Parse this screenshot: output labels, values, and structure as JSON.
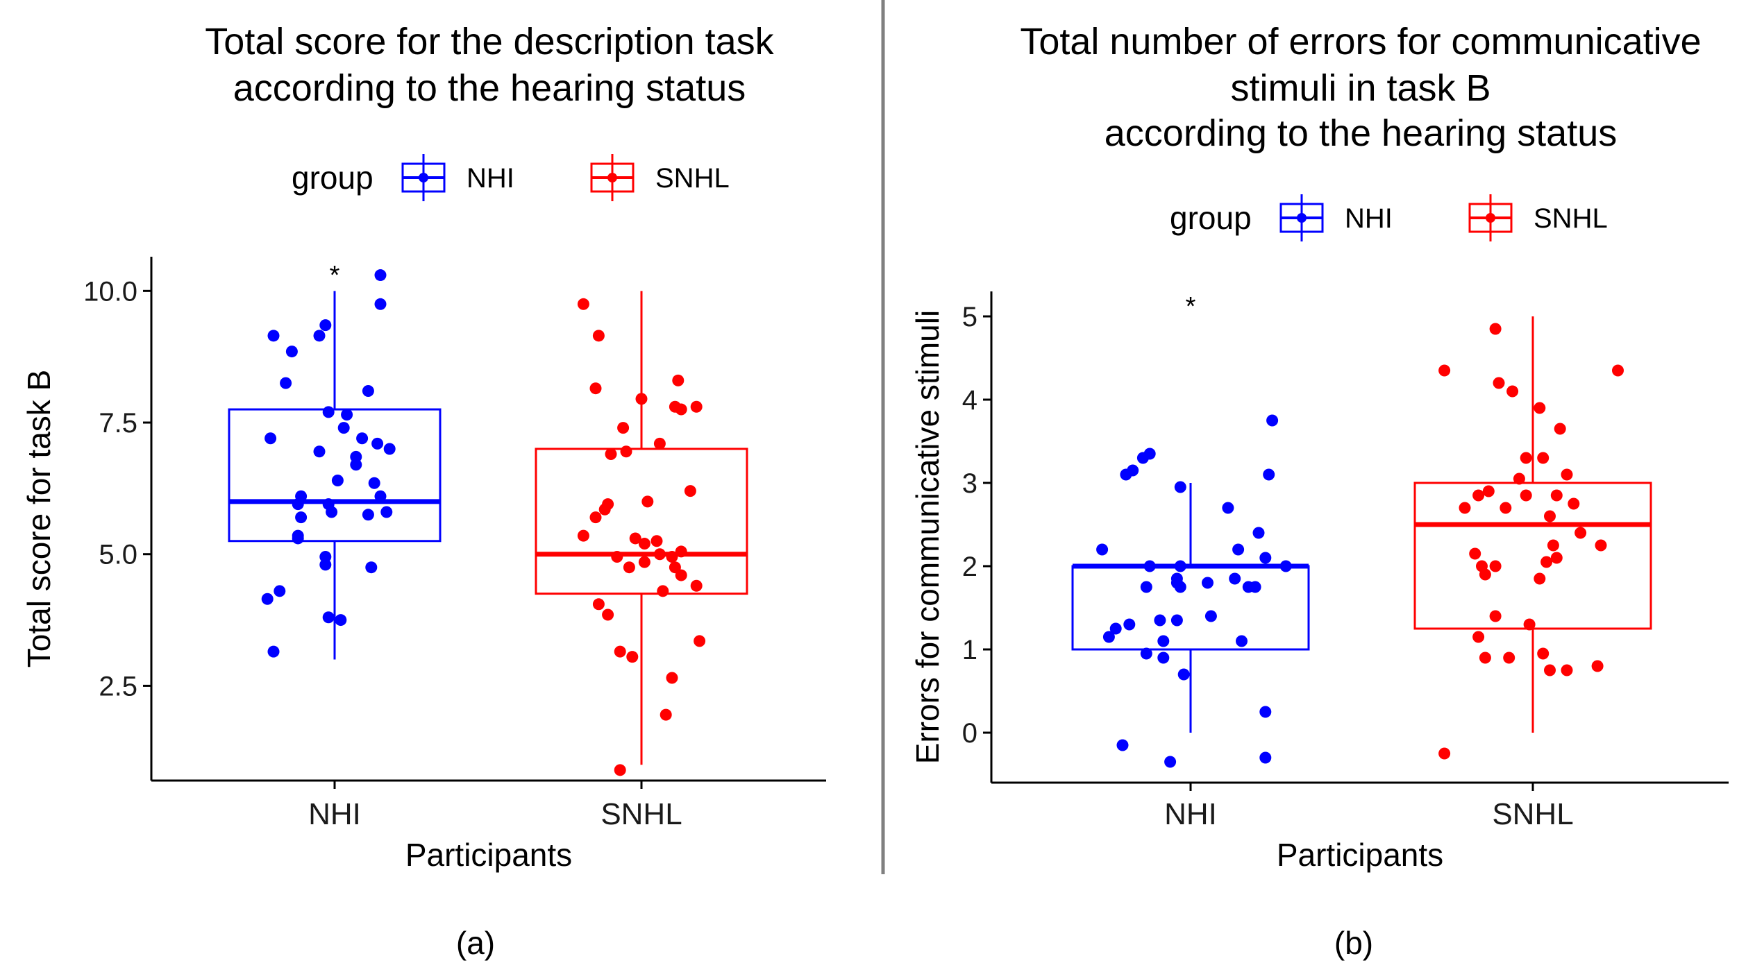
{
  "chart_data": [
    {
      "type": "box",
      "panel_label": "(a)",
      "title": [
        "Total score for the description task",
        "according to the hearing status"
      ],
      "legend": {
        "title": "group",
        "position": "top",
        "entries": [
          "NHI",
          "SNHL"
        ]
      },
      "xlabel": "Participants",
      "ylabel": "Total score for task B",
      "ylim": [
        0.7,
        10.65
      ],
      "yticks": [
        2.5,
        5.0,
        7.5,
        10.0
      ],
      "ytick_labels": [
        "2.5",
        "5.0",
        "7.5",
        "10.0"
      ],
      "categories": [
        "NHI",
        "SNHL"
      ],
      "significance": {
        "category": "NHI",
        "y": 10.35,
        "label": "*"
      },
      "series": [
        {
          "name": "NHI",
          "color": "#0000ff",
          "box": {
            "whisker_low": 3.0,
            "q1": 5.25,
            "median": 6.0,
            "q3": 7.75,
            "whisker_high": 10.0
          },
          "points": [
            {
              "dx": -0.2,
              "y": 9.15
            },
            {
              "dx": -0.14,
              "y": 8.85
            },
            {
              "dx": -0.05,
              "y": 9.15
            },
            {
              "dx": -0.03,
              "y": 9.35
            },
            {
              "dx": 0.15,
              "y": 10.3
            },
            {
              "dx": 0.15,
              "y": 9.75
            },
            {
              "dx": -0.16,
              "y": 8.25
            },
            {
              "dx": 0.11,
              "y": 8.1
            },
            {
              "dx": -0.02,
              "y": 7.7
            },
            {
              "dx": 0.04,
              "y": 7.65
            },
            {
              "dx": 0.03,
              "y": 7.4
            },
            {
              "dx": 0.09,
              "y": 7.2
            },
            {
              "dx": -0.21,
              "y": 7.2
            },
            {
              "dx": -0.05,
              "y": 6.95
            },
            {
              "dx": 0.14,
              "y": 7.1
            },
            {
              "dx": 0.18,
              "y": 7.0
            },
            {
              "dx": 0.07,
              "y": 6.85
            },
            {
              "dx": 0.07,
              "y": 6.7
            },
            {
              "dx": 0.01,
              "y": 6.4
            },
            {
              "dx": 0.13,
              "y": 6.35
            },
            {
              "dx": -0.11,
              "y": 6.1
            },
            {
              "dx": -0.02,
              "y": 5.95
            },
            {
              "dx": 0.15,
              "y": 6.1
            },
            {
              "dx": -0.12,
              "y": 5.95
            },
            {
              "dx": -0.01,
              "y": 5.8
            },
            {
              "dx": 0.11,
              "y": 5.75
            },
            {
              "dx": -0.11,
              "y": 5.7
            },
            {
              "dx": 0.17,
              "y": 5.8
            },
            {
              "dx": -0.12,
              "y": 5.35
            },
            {
              "dx": -0.12,
              "y": 5.3
            },
            {
              "dx": -0.03,
              "y": 4.95
            },
            {
              "dx": -0.03,
              "y": 4.8
            },
            {
              "dx": 0.12,
              "y": 4.75
            },
            {
              "dx": -0.18,
              "y": 4.3
            },
            {
              "dx": -0.22,
              "y": 4.15
            },
            {
              "dx": -0.02,
              "y": 3.8
            },
            {
              "dx": 0.02,
              "y": 3.75
            },
            {
              "dx": -0.2,
              "y": 3.15
            }
          ]
        },
        {
          "name": "SNHL",
          "color": "#ff0000",
          "box": {
            "whisker_low": 1.0,
            "q1": 4.25,
            "median": 5.0,
            "q3": 7.0,
            "whisker_high": 10.0
          },
          "points": [
            {
              "dx": -0.19,
              "y": 9.75
            },
            {
              "dx": -0.14,
              "y": 9.15
            },
            {
              "dx": 0.12,
              "y": 8.3
            },
            {
              "dx": -0.15,
              "y": 8.15
            },
            {
              "dx": 0.0,
              "y": 7.95
            },
            {
              "dx": 0.11,
              "y": 7.8
            },
            {
              "dx": 0.18,
              "y": 7.8
            },
            {
              "dx": 0.13,
              "y": 7.75
            },
            {
              "dx": -0.06,
              "y": 7.4
            },
            {
              "dx": 0.06,
              "y": 7.1
            },
            {
              "dx": -0.1,
              "y": 6.9
            },
            {
              "dx": -0.05,
              "y": 6.95
            },
            {
              "dx": 0.16,
              "y": 6.2
            },
            {
              "dx": 0.02,
              "y": 6.0
            },
            {
              "dx": -0.11,
              "y": 5.95
            },
            {
              "dx": -0.12,
              "y": 5.85
            },
            {
              "dx": -0.15,
              "y": 5.7
            },
            {
              "dx": -0.19,
              "y": 5.35
            },
            {
              "dx": -0.02,
              "y": 5.3
            },
            {
              "dx": 0.05,
              "y": 5.25
            },
            {
              "dx": 0.01,
              "y": 5.2
            },
            {
              "dx": 0.13,
              "y": 5.05
            },
            {
              "dx": 0.06,
              "y": 5.0
            },
            {
              "dx": -0.08,
              "y": 4.95
            },
            {
              "dx": 0.1,
              "y": 4.95
            },
            {
              "dx": 0.01,
              "y": 4.85
            },
            {
              "dx": 0.11,
              "y": 4.75
            },
            {
              "dx": -0.04,
              "y": 4.75
            },
            {
              "dx": 0.13,
              "y": 4.6
            },
            {
              "dx": 0.18,
              "y": 4.4
            },
            {
              "dx": 0.07,
              "y": 4.3
            },
            {
              "dx": -0.14,
              "y": 4.05
            },
            {
              "dx": -0.11,
              "y": 3.85
            },
            {
              "dx": 0.19,
              "y": 3.35
            },
            {
              "dx": -0.07,
              "y": 3.15
            },
            {
              "dx": -0.03,
              "y": 3.05
            },
            {
              "dx": 0.1,
              "y": 2.65
            },
            {
              "dx": 0.08,
              "y": 1.95
            },
            {
              "dx": -0.07,
              "y": 0.9
            }
          ]
        }
      ]
    },
    {
      "type": "box",
      "panel_label": "(b)",
      "title": [
        "Total number of errors for communicative",
        "stimuli in task B",
        "according to the hearing status"
      ],
      "legend": {
        "title": "group",
        "position": "top",
        "entries": [
          "NHI",
          "SNHL"
        ]
      },
      "xlabel": "Participants",
      "ylabel": "Errors for communicative stimuli",
      "ylim": [
        -0.6,
        5.3
      ],
      "yticks": [
        0,
        1,
        2,
        3,
        4,
        5
      ],
      "ytick_labels": [
        "0",
        "1",
        "2",
        "3",
        "4",
        "5"
      ],
      "categories": [
        "NHI",
        "SNHL"
      ],
      "significance": {
        "category": "NHI",
        "y": 5.15,
        "label": "*"
      },
      "series": [
        {
          "name": "NHI",
          "color": "#0000ff",
          "box": {
            "whisker_low": 0.0,
            "q1": 1.0,
            "median": 2.0,
            "q3": 2.0,
            "whisker_high": 3.0
          },
          "points": [
            {
              "dx": 0.24,
              "y": 3.75
            },
            {
              "dx": -0.12,
              "y": 3.35
            },
            {
              "dx": -0.14,
              "y": 3.3
            },
            {
              "dx": -0.17,
              "y": 3.15
            },
            {
              "dx": -0.19,
              "y": 3.1
            },
            {
              "dx": 0.23,
              "y": 3.1
            },
            {
              "dx": -0.03,
              "y": 2.95
            },
            {
              "dx": 0.11,
              "y": 2.7
            },
            {
              "dx": 0.2,
              "y": 2.4
            },
            {
              "dx": -0.26,
              "y": 2.2
            },
            {
              "dx": 0.14,
              "y": 2.2
            },
            {
              "dx": 0.22,
              "y": 2.1
            },
            {
              "dx": -0.03,
              "y": 2.0
            },
            {
              "dx": -0.12,
              "y": 2.0
            },
            {
              "dx": 0.28,
              "y": 2.0
            },
            {
              "dx": -0.04,
              "y": 1.85
            },
            {
              "dx": 0.13,
              "y": 1.85
            },
            {
              "dx": -0.04,
              "y": 1.8
            },
            {
              "dx": 0.05,
              "y": 1.8
            },
            {
              "dx": 0.17,
              "y": 1.75
            },
            {
              "dx": -0.03,
              "y": 1.75
            },
            {
              "dx": -0.13,
              "y": 1.75
            },
            {
              "dx": 0.19,
              "y": 1.75
            },
            {
              "dx": 0.06,
              "y": 1.4
            },
            {
              "dx": -0.04,
              "y": 1.35
            },
            {
              "dx": -0.09,
              "y": 1.35
            },
            {
              "dx": -0.18,
              "y": 1.3
            },
            {
              "dx": -0.22,
              "y": 1.25
            },
            {
              "dx": -0.24,
              "y": 1.15
            },
            {
              "dx": 0.15,
              "y": 1.1
            },
            {
              "dx": -0.08,
              "y": 1.1
            },
            {
              "dx": -0.13,
              "y": 0.95
            },
            {
              "dx": -0.08,
              "y": 0.9
            },
            {
              "dx": -0.02,
              "y": 0.7
            },
            {
              "dx": 0.22,
              "y": 0.25
            },
            {
              "dx": -0.2,
              "y": -0.15
            },
            {
              "dx": -0.06,
              "y": -0.35
            },
            {
              "dx": 0.22,
              "y": -0.3
            }
          ]
        },
        {
          "name": "SNHL",
          "color": "#ff0000",
          "box": {
            "whisker_low": 0.0,
            "q1": 1.25,
            "median": 2.5,
            "q3": 3.0,
            "whisker_high": 5.0
          },
          "points": [
            {
              "dx": -0.11,
              "y": 4.85
            },
            {
              "dx": -0.26,
              "y": 4.35
            },
            {
              "dx": 0.25,
              "y": 4.35
            },
            {
              "dx": -0.1,
              "y": 4.2
            },
            {
              "dx": -0.06,
              "y": 4.1
            },
            {
              "dx": 0.02,
              "y": 3.9
            },
            {
              "dx": 0.08,
              "y": 3.65
            },
            {
              "dx": -0.02,
              "y": 3.3
            },
            {
              "dx": 0.03,
              "y": 3.3
            },
            {
              "dx": 0.1,
              "y": 3.1
            },
            {
              "dx": -0.04,
              "y": 3.05
            },
            {
              "dx": -0.13,
              "y": 2.9
            },
            {
              "dx": -0.16,
              "y": 2.85
            },
            {
              "dx": -0.02,
              "y": 2.85
            },
            {
              "dx": 0.07,
              "y": 2.85
            },
            {
              "dx": 0.12,
              "y": 2.75
            },
            {
              "dx": -0.2,
              "y": 2.7
            },
            {
              "dx": -0.08,
              "y": 2.7
            },
            {
              "dx": 0.05,
              "y": 2.6
            },
            {
              "dx": 0.14,
              "y": 2.4
            },
            {
              "dx": 0.06,
              "y": 2.25
            },
            {
              "dx": 0.2,
              "y": 2.25
            },
            {
              "dx": -0.17,
              "y": 2.15
            },
            {
              "dx": 0.07,
              "y": 2.1
            },
            {
              "dx": 0.04,
              "y": 2.05
            },
            {
              "dx": -0.15,
              "y": 2.0
            },
            {
              "dx": -0.11,
              "y": 2.0
            },
            {
              "dx": -0.14,
              "y": 1.9
            },
            {
              "dx": 0.02,
              "y": 1.85
            },
            {
              "dx": -0.11,
              "y": 1.4
            },
            {
              "dx": -0.01,
              "y": 1.3
            },
            {
              "dx": -0.16,
              "y": 1.15
            },
            {
              "dx": -0.07,
              "y": 0.9
            },
            {
              "dx": -0.14,
              "y": 0.9
            },
            {
              "dx": 0.03,
              "y": 0.95
            },
            {
              "dx": 0.05,
              "y": 0.75
            },
            {
              "dx": 0.1,
              "y": 0.75
            },
            {
              "dx": 0.19,
              "y": 0.8
            },
            {
              "dx": -0.26,
              "y": -0.25
            }
          ]
        }
      ]
    }
  ]
}
